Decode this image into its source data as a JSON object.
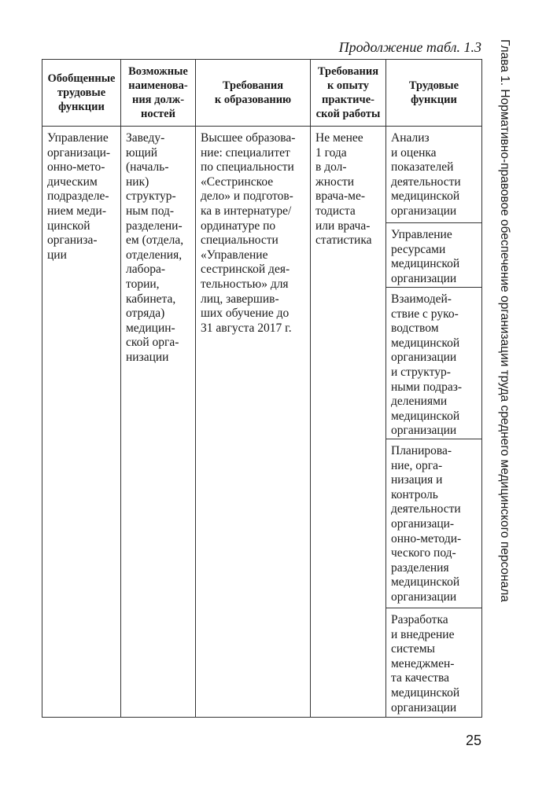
{
  "caption": "Продолжение табл. 1.3",
  "side_header": "Глава 1. Нормативно-правовое обеспечение организации труда среднего медицинского персонала",
  "page_number": "25",
  "table": {
    "headers": [
      "Обобщенные\nтрудовые\nфункции",
      "Возможные\nнаименова-\nния долж-\nностей",
      "Требования\nк образованию",
      "Требования\nк опыту\nпрактиче-\nской работы",
      "Трудовые\nфункции"
    ],
    "row": {
      "generalized_function": "Управление\nорганизаци-\nонно-мето-\nдическим\nподразделе-\nнием меди-\nцинской\nорганиза-\nции",
      "positions": "Заведу-\nющий\n(началь-\nник)\nструктур-\nным под-\nразделени-\nем (отдела,\nотделения,\nлабора-\nтории,\nкабинета,\nотряда)\nмедицин-\nской орга-\nнизации",
      "education": "Высшее образова-\nние: специалитет\nпо специальности\n«Сестринское\nдело» и подготов-\nка в интернатуре/\nординатуре по\nспециальности\n«Управление\nсестринской дея-\nтельностью» для\nлиц, завершив-\nших обучение до\n31 августа 2017 г.",
      "experience": "Не менее\n1 года\nв дол-\nжности\nврача-ме-\nтодиста\nили врача-\nстатистика",
      "functions": [
        "Анализ\nи оценка\nпоказателей\nдеятельности\nмедицинской\nорганизации",
        "Управление\nресурсами\nмедицинской\nорганизации",
        "Взаимодей-\nствие с руко-\nводством\nмедицинской\nорганизации\nи структур-\nными подраз-\nделениями\nмедицинской\nорганизации",
        "Планирова-\nние, орга-\nнизация и\nконтроль\nдеятельности\nорганизаци-\nонно-методи-\nческого под-\nразделения\nмедицинской\nорганизации",
        "Разработка\nи внедрение\nсистемы\nменеджмен-\nта качества\nмедицинской\nорганизации"
      ]
    }
  }
}
